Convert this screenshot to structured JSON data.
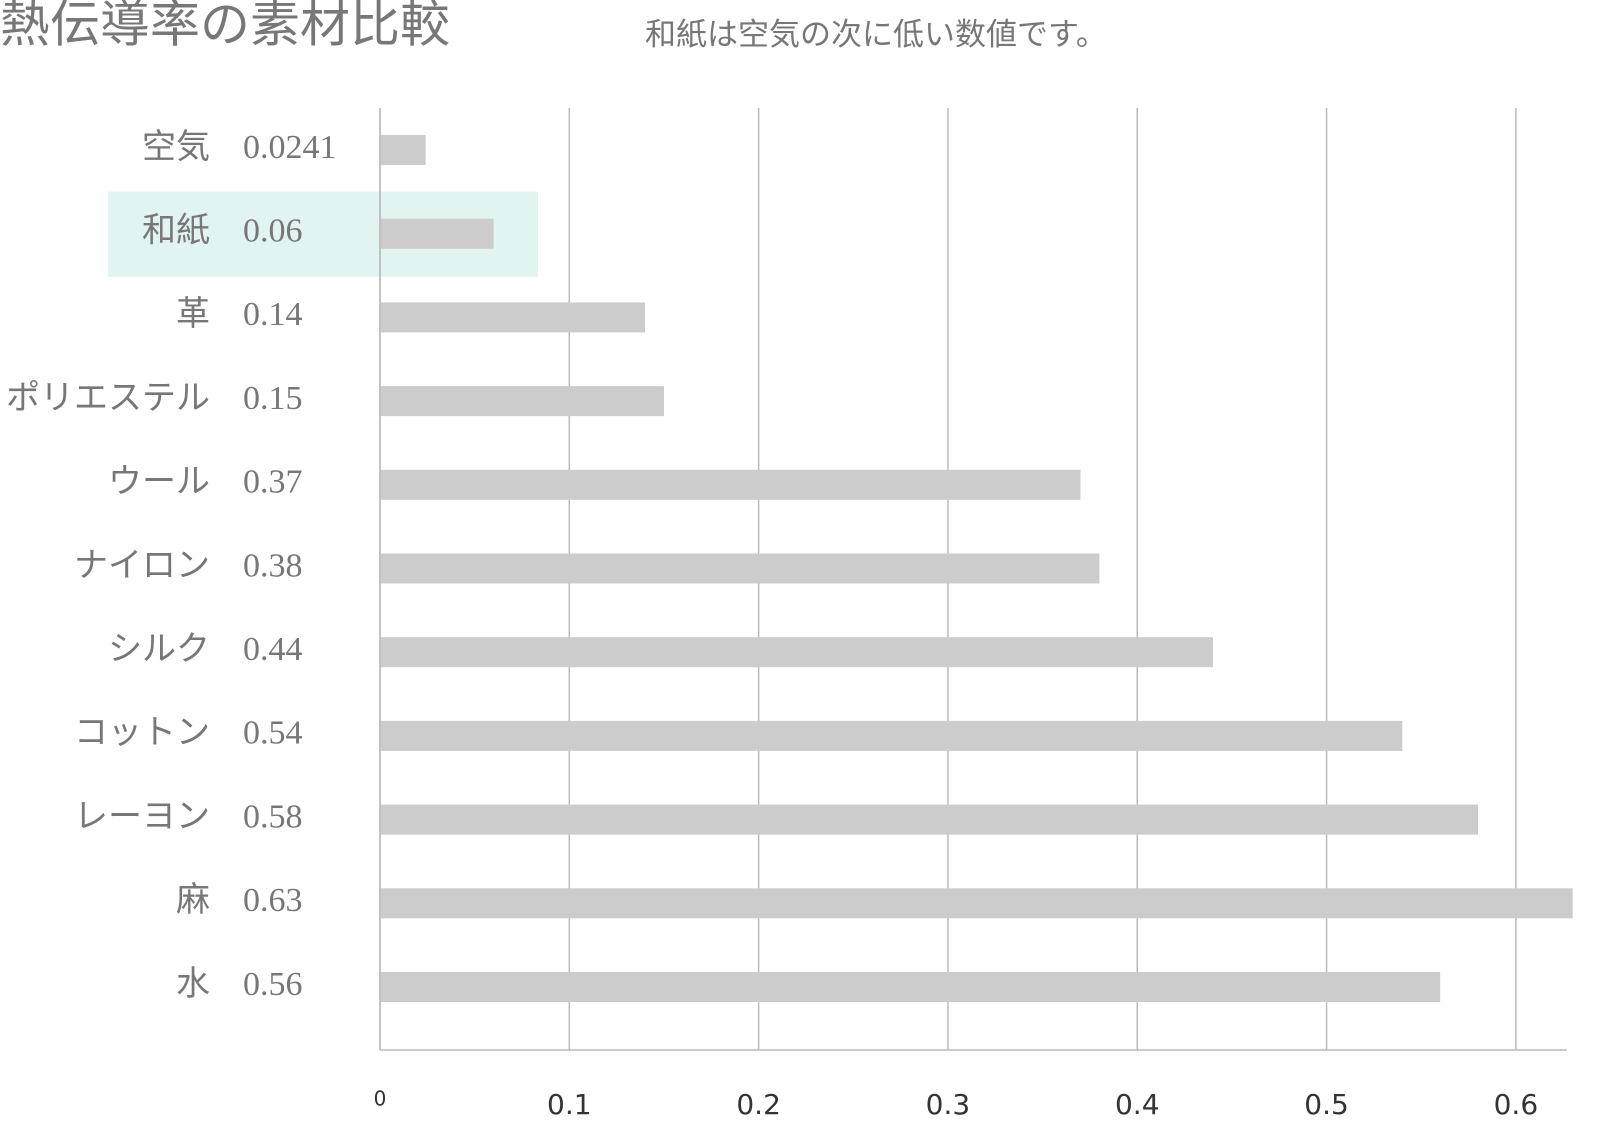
{
  "chart_data": {
    "type": "bar",
    "orientation": "horizontal",
    "title": "熱伝導率の素材比較",
    "subtitle": "和紙は空気の次に低い数値です。",
    "categories": [
      "空気",
      "和紙",
      "革",
      "ポリエステル",
      "ウール",
      "ナイロン",
      "シルク",
      "コットン",
      "レーヨン",
      "麻",
      "水"
    ],
    "values": [
      0.0241,
      0.06,
      0.14,
      0.15,
      0.37,
      0.38,
      0.44,
      0.54,
      0.58,
      0.63,
      0.56
    ],
    "color": "#cccccc",
    "highlight_index": 1,
    "highlight_color": "#e2f4f1",
    "xlim": [
      0,
      0.627
    ],
    "xticks": [
      0,
      0.1,
      0.2,
      0.3,
      0.4,
      0.5,
      0.6
    ],
    "grid": true
  }
}
